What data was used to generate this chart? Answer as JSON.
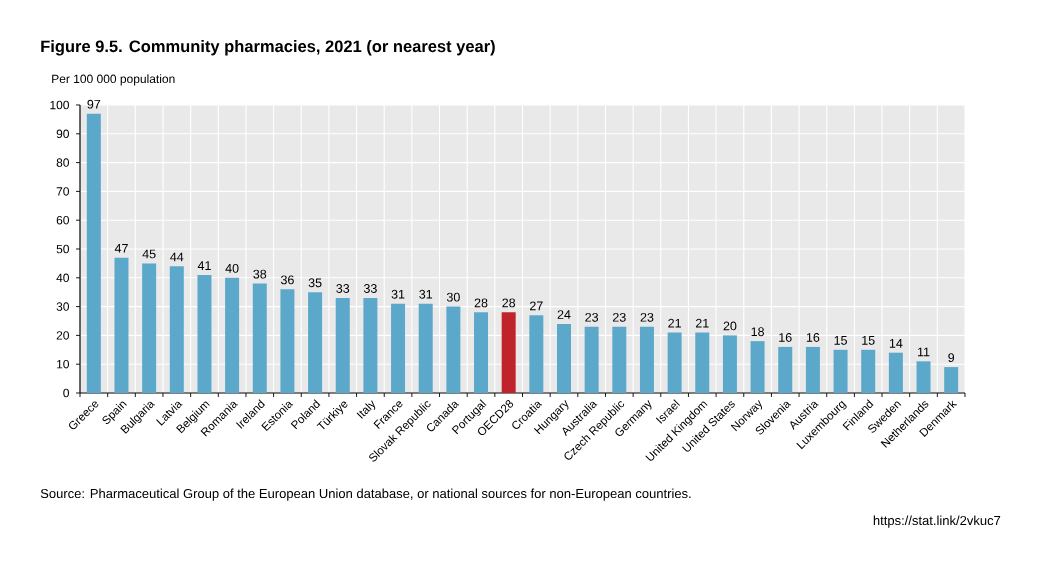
{
  "chart_data": {
    "type": "bar",
    "title": "Figure 9.5. Community pharmacies, 2021 (or nearest year)",
    "ylabel": "Per 100 000 population",
    "categories": [
      "Greece",
      "Spain",
      "Bulgaria",
      "Latvia",
      "Belgium",
      "Romania",
      "Ireland",
      "Estonia",
      "Poland",
      "Türkiye",
      "Italy",
      "France",
      "Slovak Republic",
      "Canada",
      "Portugal",
      "OECD28",
      "Croatia",
      "Hungary",
      "Australia",
      "Czech Republic",
      "Germany",
      "Israel",
      "United Kingdom",
      "United States",
      "Norway",
      "Slovenia",
      "Austria",
      "Luxembourg",
      "Finland",
      "Sweden",
      "Netherlands",
      "Denmark"
    ],
    "values": [
      97,
      47,
      45,
      44,
      41,
      40,
      38,
      36,
      35,
      33,
      33,
      31,
      31,
      30,
      28,
      28,
      27,
      24,
      23,
      23,
      23,
      21,
      21,
      20,
      18,
      16,
      16,
      15,
      15,
      14,
      11,
      9
    ],
    "colors": [
      "#5ba8cb",
      "#5ba8cb",
      "#5ba8cb",
      "#5ba8cb",
      "#5ba8cb",
      "#5ba8cb",
      "#5ba8cb",
      "#5ba8cb",
      "#5ba8cb",
      "#5ba8cb",
      "#5ba8cb",
      "#5ba8cb",
      "#5ba8cb",
      "#5ba8cb",
      "#5ba8cb",
      "#c1232b",
      "#5ba8cb",
      "#5ba8cb",
      "#5ba8cb",
      "#5ba8cb",
      "#5ba8cb",
      "#5ba8cb",
      "#5ba8cb",
      "#5ba8cb",
      "#5ba8cb",
      "#5ba8cb",
      "#5ba8cb",
      "#5ba8cb",
      "#5ba8cb",
      "#5ba8cb",
      "#5ba8cb",
      "#5ba8cb"
    ],
    "ylim": [
      0,
      100
    ],
    "yticks": [
      0,
      10,
      20,
      30,
      40,
      50,
      60,
      70,
      80,
      90,
      100
    ],
    "grid": true,
    "data_labels": true,
    "annotations": [
      "Source: Pharmaceutical Group of the European Union database, or national sources for non-European countries.",
      "https://stat.link/2vkuc7"
    ]
  }
}
